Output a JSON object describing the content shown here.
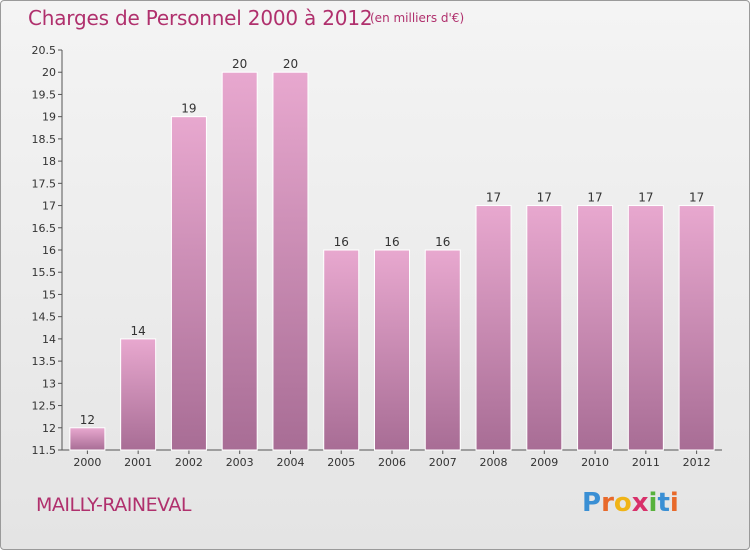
{
  "header": {
    "title": "Charges de Personnel 2000 à 2012",
    "subtitle": "(en milliers d'€)"
  },
  "footer": {
    "place": "MAILLY-RAINEVAL",
    "logo_letters": [
      {
        "char": "P",
        "color": "#3a8fd4"
      },
      {
        "char": "r",
        "color": "#e8692a"
      },
      {
        "char": "o",
        "color": "#f0b417"
      },
      {
        "char": "x",
        "color": "#d8306a"
      },
      {
        "char": "i",
        "color": "#58b23c"
      },
      {
        "char": "t",
        "color": "#3a8fd4"
      },
      {
        "char": "i",
        "color": "#e8692a"
      }
    ]
  },
  "colors": {
    "bar_top": "#e8a8cf",
    "bar_bottom": "#a86d95",
    "title": "#b0306d",
    "axis": "#555555"
  },
  "chart_data": {
    "type": "bar",
    "categories": [
      "2000",
      "2001",
      "2002",
      "2003",
      "2004",
      "2005",
      "2006",
      "2007",
      "2008",
      "2009",
      "2010",
      "2011",
      "2012"
    ],
    "values": [
      12,
      14,
      19,
      20,
      20,
      16,
      16,
      16,
      17,
      17,
      17,
      17,
      17
    ],
    "data_labels": [
      "12",
      "14",
      "19",
      "20",
      "20",
      "16",
      "16",
      "16",
      "17",
      "17",
      "17",
      "17",
      "17"
    ],
    "title": "Charges de Personnel 2000 à 2012",
    "subtitle": "(en milliers d'€)",
    "ylim": [
      11.5,
      20.5
    ],
    "yticks": [
      11.5,
      12,
      12.5,
      13,
      13.5,
      14,
      14.5,
      15,
      15.5,
      16,
      16.5,
      17,
      17.5,
      18,
      18.5,
      19,
      19.5,
      20,
      20.5
    ],
    "ytick_labels": [
      "11.5",
      "12",
      "12.5",
      "13",
      "13.5",
      "14",
      "14.5",
      "15",
      "15.5",
      "16",
      "16.5",
      "17",
      "17.5",
      "18",
      "18.5",
      "19",
      "19.5",
      "20",
      "20.5"
    ],
    "grid": false
  }
}
